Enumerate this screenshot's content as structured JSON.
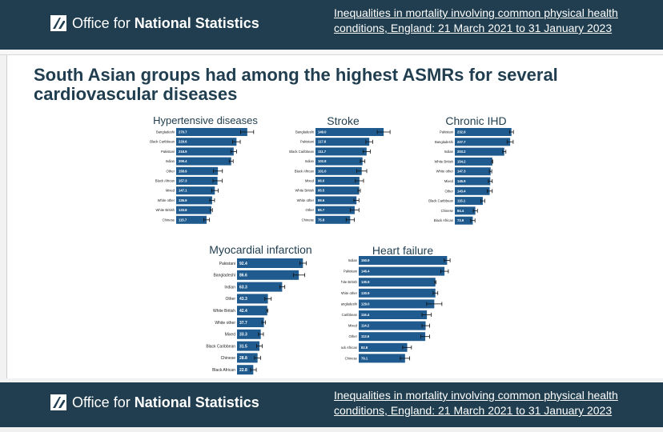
{
  "header": {
    "logo_text_light": "Office for ",
    "logo_text_bold": "National Statistics",
    "report_link": "Inequalities in mortality involving common physical health conditions, England: 21 March 2021 to 31 January 2023"
  },
  "headline": "South Asian groups had among the highest ASMRs for several cardiovascular diseases",
  "footer": {
    "logo_text_light": "Office for ",
    "logo_text_bold": "National Statistics",
    "report_link": "Inequalities in mortality involving common physical health conditions, England: 21 March 2021 to 31 January 2023"
  },
  "colors": {
    "band": "#203e4f",
    "bar": "#1f5b8e",
    "title": "#203e4f"
  },
  "chart_data": [
    {
      "type": "bar",
      "title": "Hypertensive diseases",
      "categories": [
        "Bangladeshi",
        "Black Caribbean",
        "Pakistani",
        "Indian",
        "Other",
        "Black African",
        "Mixed",
        "White other",
        "White British",
        "Chinese"
      ],
      "values": [
        270.7,
        229.6,
        218.9,
        209.4,
        158.9,
        157.3,
        147.1,
        136.9,
        133.8,
        115.7
      ],
      "value_labels": [
        "270.7",
        "229.6",
        "218.9",
        "209.4",
        "158.9",
        "157.3",
        "147.1",
        "136.9",
        "133.8",
        "115.7"
      ],
      "ci_low": [
        245,
        215,
        208,
        202,
        142,
        140,
        135,
        128,
        130,
        105
      ],
      "ci_high": [
        295,
        244,
        230,
        217,
        176,
        175,
        160,
        146,
        138,
        127
      ],
      "xlim": [
        0,
        320
      ]
    },
    {
      "type": "bar",
      "title": "Stroke",
      "categories": [
        "Bangladeshi",
        "Pakistani",
        "Black Caribbean",
        "Indian",
        "Black African",
        "Mixed",
        "White British",
        "White other",
        "Other",
        "Chinese"
      ],
      "values": [
        149.0,
        117.6,
        111.7,
        102.8,
        101.0,
        96.0,
        95.5,
        89.6,
        85.7,
        75.8
      ],
      "value_labels": [
        "149.0",
        "117.6",
        "111.7",
        "102.8",
        "101.0",
        "96.0",
        "95.5",
        "89.6",
        "85.7",
        "75.8"
      ],
      "ci_low": [
        135,
        110,
        104,
        98,
        90,
        87,
        93,
        84,
        76,
        67
      ],
      "ci_high": [
        163,
        125,
        120,
        108,
        112,
        105,
        98,
        95,
        95,
        85
      ],
      "xlim": [
        0,
        175
      ]
    },
    {
      "type": "bar",
      "title": "Chronic IHD",
      "categories": [
        "Pakistani",
        "Bangladeshi",
        "Indian",
        "White British",
        "White other",
        "Mixed",
        "Other",
        "Black Caribbean",
        "Chinese",
        "Black African"
      ],
      "values": [
        232.9,
        227.7,
        203.2,
        154.2,
        147.3,
        145.9,
        143.4,
        115.1,
        84.4,
        73.9
      ],
      "value_labels": [
        "232.9",
        "227.7",
        "203.2",
        "154.2",
        "147.3",
        "145.9",
        "143.4",
        "115.1",
        "84.4",
        "73.9"
      ],
      "ci_low": [
        225,
        215,
        197,
        152,
        142,
        138,
        133,
        107,
        76,
        65
      ],
      "ci_high": [
        241,
        240,
        210,
        156,
        152,
        154,
        154,
        123,
        93,
        83
      ],
      "xlim": [
        0,
        270
      ]
    },
    {
      "type": "bar",
      "title": "Myocardial infarction",
      "categories": [
        "Pakistani",
        "Bangladeshi",
        "Indian",
        "Other",
        "White British",
        "White other",
        "Mixed",
        "Black Caribbean",
        "Chinese",
        "Black African"
      ],
      "values": [
        92.4,
        86.6,
        63.3,
        43.3,
        42.4,
        37.7,
        33.3,
        31.5,
        28.8,
        22.8
      ],
      "value_labels": [
        "92.4",
        "86.6",
        "63.3",
        "43.3",
        "42.4",
        "37.7",
        "33.3",
        "31.5",
        "28.8",
        "22.8"
      ],
      "ci_low": [
        88,
        79,
        60,
        39,
        41.5,
        35,
        30,
        27.5,
        24.5,
        19
      ],
      "ci_high": [
        97,
        95,
        67,
        48,
        43.3,
        40,
        37,
        35.5,
        33,
        27
      ],
      "xlim": [
        0,
        110
      ]
    },
    {
      "type": "bar",
      "title": "Heart failure",
      "categories": [
        "Indian",
        "Pakistani",
        "White British",
        "White other",
        "Bangladeshi",
        "Black Caribbean",
        "Mixed",
        "Other",
        "Black African",
        "Chinese"
      ],
      "values": [
        150.9,
        146.4,
        130.9,
        130.9,
        129.0,
        116.4,
        114.2,
        113.6,
        82.8,
        79.1
      ],
      "value_labels": [
        "150.9",
        "146.4",
        "130.9",
        "130.9",
        "129.0",
        "116.4",
        "114.2",
        "113.6",
        "82.8",
        "79.1"
      ],
      "ci_low": [
        146,
        140,
        129.5,
        127,
        116,
        108,
        108,
        106,
        75,
        71
      ],
      "ci_high": [
        156,
        153,
        132,
        135,
        142,
        124,
        121,
        121,
        90,
        87
      ],
      "xlim": [
        0,
        175
      ]
    }
  ]
}
